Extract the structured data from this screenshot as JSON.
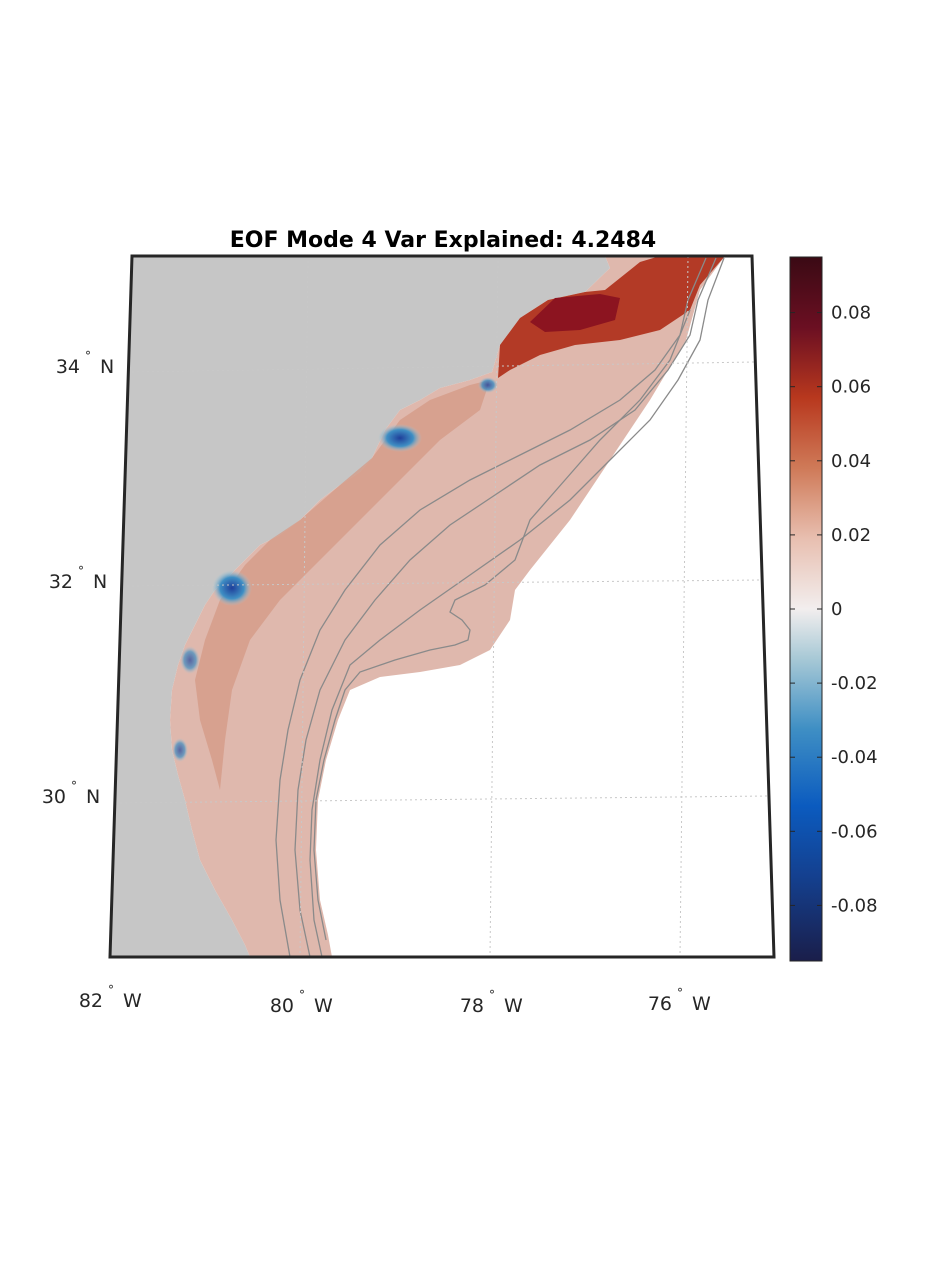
{
  "title": "EOF Mode 4 Var Explained: 4.2484",
  "longitude_labels": [
    {
      "deg": "82",
      "hemi": "W"
    },
    {
      "deg": "80",
      "hemi": "W"
    },
    {
      "deg": "78",
      "hemi": "W"
    },
    {
      "deg": "76",
      "hemi": "W"
    }
  ],
  "latitude_labels": [
    {
      "deg": "34",
      "hemi": "N"
    },
    {
      "deg": "32",
      "hemi": "N"
    },
    {
      "deg": "30",
      "hemi": "N"
    }
  ],
  "colorbar": {
    "ticks": [
      "0.08",
      "0.06",
      "0.04",
      "0.02",
      "0",
      "-0.02",
      "-0.04",
      "-0.06",
      "-0.08"
    ],
    "range": [
      -0.095,
      0.095
    ],
    "colormap": [
      "#1a1e4a",
      "#0b5bbf",
      "#3f8fc4",
      "#a8c9d6",
      "#f2eeee",
      "#e8bfb0",
      "#cf7a58",
      "#b8381e",
      "#6b0f22",
      "#3a0a14"
    ]
  },
  "colors": {
    "land": "#c6c6c6",
    "ocean_field": "#dfb8ad",
    "strong_positive": "#9e1a1e",
    "negative": "#1f5fa8",
    "isobath": "#8a8a8a",
    "grid": "#c8c8c8",
    "frame": "#262626"
  }
}
